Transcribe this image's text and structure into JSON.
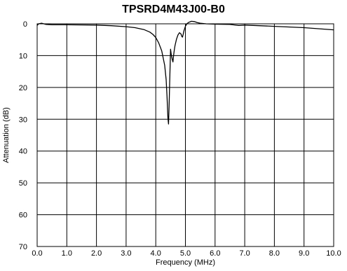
{
  "chart_data": {
    "type": "line",
    "title": "TPSRD4M43J00-B0",
    "xlabel": "Frequency  (MHz)",
    "ylabel": "Attenuation (dB)",
    "xlim": [
      0,
      10
    ],
    "ylim": [
      0,
      70
    ],
    "y_inverted": true,
    "grid": true,
    "legend": "none",
    "x_ticks": [
      "0.0",
      "1.0",
      "2.0",
      "3.0",
      "4.0",
      "5.0",
      "6.0",
      "7.0",
      "8.0",
      "9.0",
      "10.0"
    ],
    "y_ticks": [
      "0",
      "10",
      "20",
      "30",
      "40",
      "50",
      "60",
      "70"
    ],
    "series": [
      {
        "color": "#000000",
        "x": [
          0.0,
          0.05,
          0.15,
          0.3,
          0.5,
          1.0,
          2.0,
          2.5,
          3.0,
          3.3,
          3.6,
          3.8,
          3.9,
          4.0,
          4.1,
          4.2,
          4.3,
          4.35,
          4.38,
          4.41,
          4.43,
          4.45,
          4.47,
          4.5,
          4.52,
          4.55,
          4.58,
          4.6,
          4.63,
          4.65,
          4.7,
          4.75,
          4.8,
          4.85,
          4.88,
          4.9,
          4.92,
          4.95,
          5.0,
          5.05,
          5.1,
          5.2,
          5.3,
          5.4,
          5.5,
          5.7,
          6.0,
          6.5,
          6.8,
          7.0,
          7.5,
          8.0,
          9.0,
          10.0
        ],
        "y": [
          0.5,
          0.0,
          -0.2,
          0.2,
          0.3,
          0.3,
          0.4,
          0.6,
          0.9,
          1.2,
          1.8,
          2.6,
          3.3,
          4.3,
          6.0,
          8.5,
          13.0,
          17.5,
          23.0,
          29.5,
          31.5,
          26.0,
          18.0,
          8.0,
          9.5,
          11.0,
          12.0,
          10.0,
          8.0,
          6.8,
          4.8,
          3.5,
          2.8,
          3.2,
          4.0,
          4.2,
          3.5,
          2.2,
          0.8,
          0.0,
          -0.4,
          -0.8,
          -0.7,
          -0.4,
          -0.2,
          0.0,
          0.1,
          0.2,
          0.5,
          0.4,
          0.6,
          0.8,
          1.2,
          1.9
        ]
      }
    ]
  }
}
